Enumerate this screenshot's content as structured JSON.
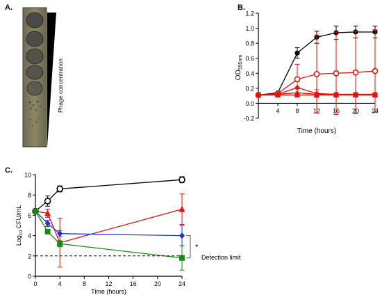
{
  "panels": {
    "a": {
      "label": "A.",
      "triangle_label": "Phage concentration"
    },
    "b": {
      "label": "B."
    },
    "c": {
      "label": "C."
    }
  },
  "chart_data": [
    {
      "panel": "B.",
      "type": "line",
      "title": "",
      "xlabel": "Time (hours)",
      "ylabel": "OD595nm",
      "ylabel_main": "OD",
      "ylabel_sub": "595nm",
      "xlim": [
        0,
        24
      ],
      "ylim": [
        -0.2,
        1.2
      ],
      "xticks": [
        "4",
        "8",
        "12",
        "16",
        "20",
        "24"
      ],
      "yticks": [
        "-0.2",
        "0.0",
        "0.2",
        "0.4",
        "0.6",
        "0.8",
        "1.0",
        "1.2"
      ],
      "x": [
        0,
        4,
        8,
        12,
        16,
        20,
        24
      ],
      "series": [
        {
          "color": "#000000",
          "marker": "filled-circle",
          "values": [
            0.11,
            0.14,
            0.67,
            0.88,
            0.94,
            0.95,
            0.95
          ],
          "errors": [
            0.01,
            0.01,
            0.07,
            0.08,
            0.09,
            0.08,
            0.08
          ]
        },
        {
          "color": "#e3120b",
          "marker": "open-circle",
          "values": [
            0.11,
            0.13,
            0.32,
            0.39,
            0.4,
            0.41,
            0.43
          ],
          "errors": [
            0.01,
            0.01,
            0.2,
            0.52,
            0.55,
            0.55,
            0.55
          ]
        },
        {
          "color": "#e3120b",
          "marker": "filled-diamond",
          "values": [
            0.11,
            0.12,
            0.21,
            0.13,
            0.12,
            0.12,
            0.12
          ],
          "errors": [
            0.01,
            0.01,
            0.08,
            0.05,
            0.02,
            0.02,
            0.02
          ]
        },
        {
          "color": "#e3120b",
          "marker": "filled-triangle",
          "values": [
            0.11,
            0.12,
            0.14,
            0.12,
            0.12,
            0.12,
            0.12
          ],
          "errors": [
            0.01,
            0.01,
            0.05,
            0.02,
            0.02,
            0.02,
            0.02
          ]
        },
        {
          "color": "#e3120b",
          "marker": "filled-square",
          "values": [
            0.11,
            0.11,
            0.11,
            0.11,
            0.11,
            0.11,
            0.11
          ],
          "errors": [
            0.01,
            0.01,
            0.01,
            0.01,
            0.01,
            0.01,
            0.01
          ]
        }
      ]
    },
    {
      "panel": "C.",
      "type": "line",
      "title": "",
      "xlabel": "Time (hours)",
      "ylabel": "Log10 CFU/mL",
      "ylabel_pre": "Log",
      "ylabel_sub": "10",
      "ylabel_post": " CFU/mL",
      "xlim": [
        0,
        24
      ],
      "ylim": [
        0,
        10
      ],
      "xticks": [
        "0",
        "4",
        "8",
        "12",
        "16",
        "20",
        "24"
      ],
      "yticks": [
        "0",
        "2",
        "4",
        "6",
        "8",
        "10"
      ],
      "x": [
        0,
        2,
        4,
        24
      ],
      "series": [
        {
          "color": "#000000",
          "marker": "open-circle",
          "values": [
            6.4,
            7.4,
            8.6,
            9.5
          ],
          "errors": [
            0.2,
            0.5,
            0.3,
            0.3
          ]
        },
        {
          "color": "#e3120b",
          "marker": "filled-triangle",
          "values": [
            6.4,
            6.2,
            3.3,
            6.6
          ],
          "errors": [
            0.2,
            0.4,
            2.4,
            1.5
          ]
        },
        {
          "color": "#1f2fd6",
          "marker": "filled-diamond",
          "values": [
            6.4,
            5.2,
            4.2,
            4.0
          ],
          "errors": [
            0.2,
            0.3,
            0.3,
            1.0
          ]
        },
        {
          "color": "#168a16",
          "marker": "filled-square",
          "values": [
            6.4,
            4.4,
            3.2,
            1.8
          ],
          "errors": [
            0.2,
            0.2,
            0.3,
            1.2
          ]
        }
      ],
      "detection_limit": {
        "value": 2,
        "label": "Detection limit"
      },
      "annotation": "*"
    }
  ]
}
